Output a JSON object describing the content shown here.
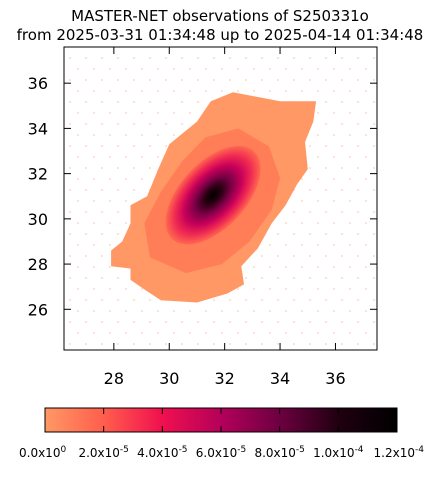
{
  "chart_data": {
    "type": "heatmap",
    "title": "MASTER-NET observations of S250331o",
    "subtitle": "from 2025-03-31 01:34:48 up to 2025-04-14 01:34:48",
    "xlabel": "",
    "ylabel": "",
    "xlim": [
      26.2,
      37.5
    ],
    "ylim": [
      24.2,
      37.6
    ],
    "x_ticks": [
      "28",
      "30",
      "32",
      "34",
      "36"
    ],
    "x_tick_values": [
      28,
      30,
      32,
      34,
      36
    ],
    "y_ticks": [
      "26",
      "28",
      "30",
      "32",
      "34",
      "36"
    ],
    "y_tick_values": [
      26,
      28,
      30,
      32,
      34,
      36
    ],
    "grid": false,
    "density_peak": {
      "x": 31.8,
      "y": 31.4
    },
    "density_max": 0.00012,
    "colorbar": {
      "min": 0,
      "max": 0.00012,
      "ticks": [
        0,
        2e-05,
        4e-05,
        6e-05,
        8e-05,
        0.0001,
        0.00012
      ],
      "tick_labels": [
        {
          "mant": "0.0x10",
          "exp": "0"
        },
        {
          "mant": "2.0x10",
          "exp": "-5"
        },
        {
          "mant": "4.0x10",
          "exp": "-5"
        },
        {
          "mant": "6.0x10",
          "exp": "-5"
        },
        {
          "mant": "8.0x10",
          "exp": "-5"
        },
        {
          "mant": "1.0x10",
          "exp": "-4"
        },
        {
          "mant": "1.2x10",
          "exp": "-4"
        }
      ],
      "colors": [
        "#ff9864",
        "#ff5e4d",
        "#f0104f",
        "#b4005a",
        "#6c0040",
        "#200010",
        "#000000"
      ]
    }
  }
}
